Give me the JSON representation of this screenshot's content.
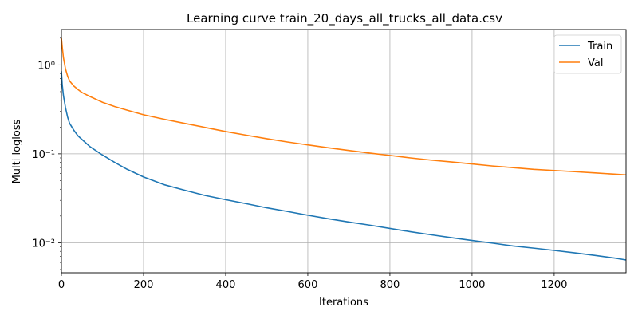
{
  "chart_data": {
    "type": "line",
    "title": "Learning curve train_20_days_all_trucks_all_data.csv",
    "xlabel": "Iterations",
    "ylabel": "Multi logloss",
    "xscale": "linear",
    "yscale": "log",
    "xlim": [
      0,
      1375
    ],
    "ylim": [
      0.0046,
      2.5
    ],
    "grid": true,
    "legend_position": "top-right",
    "x_ticks": [
      0,
      200,
      400,
      600,
      800,
      1000,
      1200
    ],
    "x_tick_labels": [
      "0",
      "200",
      "400",
      "600",
      "800",
      "1000",
      "1200"
    ],
    "y_ticks": [
      0.01,
      0.1,
      1
    ],
    "y_tick_labels": [
      "10⁻²",
      "10⁻¹",
      "10⁰"
    ],
    "series": [
      {
        "name": "Train",
        "color": "#1f77b4",
        "x": [
          0,
          2,
          5,
          10,
          15,
          20,
          30,
          40,
          50,
          70,
          100,
          130,
          160,
          200,
          250,
          300,
          350,
          400,
          450,
          500,
          550,
          600,
          650,
          700,
          750,
          800,
          850,
          900,
          950,
          1000,
          1050,
          1100,
          1150,
          1200,
          1250,
          1300,
          1350,
          1375
        ],
        "y": [
          0.85,
          0.6,
          0.45,
          0.33,
          0.26,
          0.22,
          0.185,
          0.16,
          0.145,
          0.12,
          0.097,
          0.08,
          0.067,
          0.055,
          0.045,
          0.039,
          0.034,
          0.0305,
          0.0275,
          0.0247,
          0.0225,
          0.0204,
          0.0186,
          0.0171,
          0.0158,
          0.0145,
          0.0133,
          0.0123,
          0.0114,
          0.0106,
          0.0099,
          0.0092,
          0.0087,
          0.0082,
          0.0077,
          0.0072,
          0.0067,
          0.0064
        ]
      },
      {
        "name": "Val",
        "color": "#ff7f0e",
        "x": [
          0,
          2,
          5,
          10,
          15,
          20,
          30,
          40,
          50,
          70,
          100,
          130,
          160,
          200,
          250,
          300,
          350,
          400,
          450,
          500,
          550,
          600,
          650,
          700,
          750,
          800,
          850,
          900,
          950,
          1000,
          1050,
          1100,
          1150,
          1200,
          1250,
          1300,
          1350,
          1375
        ],
        "y": [
          2.0,
          1.6,
          1.2,
          0.9,
          0.75,
          0.66,
          0.58,
          0.53,
          0.49,
          0.44,
          0.38,
          0.34,
          0.31,
          0.275,
          0.245,
          0.22,
          0.198,
          0.178,
          0.162,
          0.148,
          0.136,
          0.126,
          0.117,
          0.109,
          0.102,
          0.096,
          0.09,
          0.085,
          0.081,
          0.077,
          0.073,
          0.07,
          0.067,
          0.065,
          0.063,
          0.061,
          0.059,
          0.058
        ]
      }
    ]
  }
}
